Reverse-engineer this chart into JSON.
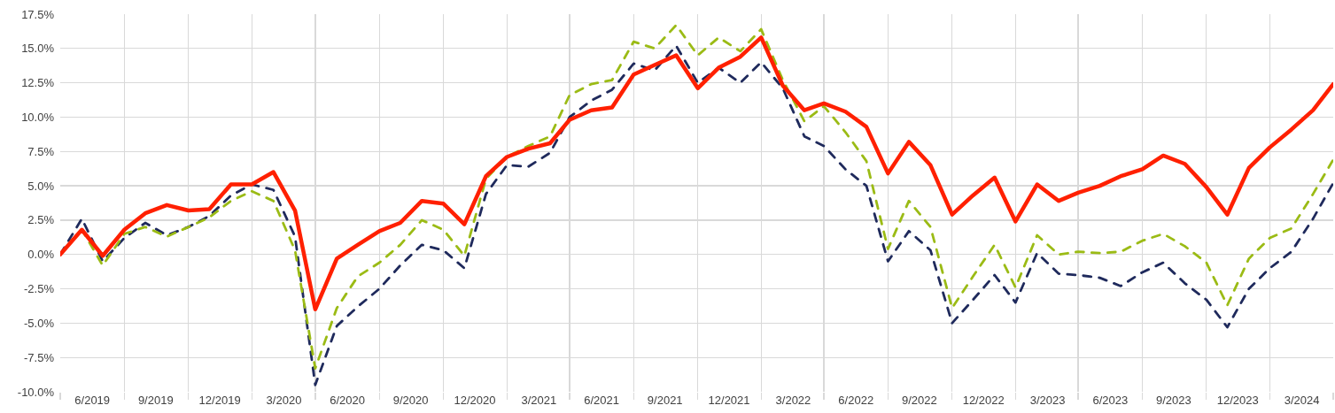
{
  "chart_data": {
    "type": "line",
    "x": [
      "2019-03",
      "2019-04",
      "2019-05",
      "2019-06",
      "2019-07",
      "2019-08",
      "2019-09",
      "2019-10",
      "2019-11",
      "2019-12",
      "2020-01",
      "2020-02",
      "2020-03",
      "2020-04",
      "2020-05",
      "2020-06",
      "2020-07",
      "2020-08",
      "2020-09",
      "2020-10",
      "2020-11",
      "2020-12",
      "2021-01",
      "2021-02",
      "2021-03",
      "2021-04",
      "2021-05",
      "2021-06",
      "2021-07",
      "2021-08",
      "2021-09",
      "2021-10",
      "2021-11",
      "2021-12",
      "2022-01",
      "2022-02",
      "2022-03",
      "2022-04",
      "2022-05",
      "2022-06",
      "2022-07",
      "2022-08",
      "2022-09",
      "2022-10",
      "2022-11",
      "2022-12",
      "2023-01",
      "2023-02",
      "2023-03",
      "2023-04",
      "2023-05",
      "2023-06",
      "2023-07",
      "2023-08",
      "2023-09",
      "2023-10",
      "2023-11",
      "2023-12",
      "2024-01",
      "2024-02",
      "2024-03"
    ],
    "series": [
      {
        "color": "#1f2a5c",
        "line_style": "dashed",
        "values": [
          0.0,
          2.6,
          -0.5,
          1.2,
          2.3,
          1.4,
          2.0,
          2.8,
          4.3,
          5.1,
          4.7,
          1.3,
          -9.5,
          -5.2,
          -3.8,
          -2.5,
          -0.8,
          0.7,
          0.3,
          -1.0,
          4.4,
          6.5,
          6.4,
          7.4,
          10.0,
          11.2,
          12.0,
          13.9,
          13.4,
          15.2,
          12.5,
          13.6,
          12.5,
          14.0,
          12.1,
          8.6,
          7.9,
          6.2,
          5.0,
          -0.5,
          1.7,
          0.3,
          -5.0,
          -3.3,
          -1.5,
          -3.5,
          0.1,
          -1.4,
          -1.5,
          -1.7,
          -2.3,
          -1.3,
          -0.6,
          -2.1,
          -3.3,
          -5.3,
          -2.5,
          -1.0,
          0.2,
          2.6,
          5.2
        ]
      },
      {
        "color": "#9bbb15",
        "line_style": "dashed",
        "values": [
          0.0,
          1.8,
          -0.8,
          1.5,
          2.0,
          1.3,
          2.0,
          2.7,
          3.9,
          4.6,
          3.9,
          0.3,
          -8.3,
          -3.9,
          -1.6,
          -0.6,
          0.7,
          2.5,
          1.8,
          -0.1,
          5.5,
          7.1,
          7.9,
          8.6,
          11.6,
          12.4,
          12.7,
          15.5,
          15.0,
          16.7,
          14.5,
          15.8,
          14.8,
          16.4,
          12.7,
          9.7,
          10.8,
          8.9,
          6.8,
          0.4,
          3.9,
          2.0,
          -3.9,
          -1.6,
          0.7,
          -2.4,
          1.4,
          0.0,
          0.2,
          0.1,
          0.2,
          1.0,
          1.5,
          0.6,
          -0.6,
          -3.7,
          -0.3,
          1.2,
          1.9,
          4.4,
          6.9
        ]
      },
      {
        "color": "#ff2000",
        "line_style": "solid",
        "values": [
          0.0,
          1.8,
          -0.1,
          1.8,
          3.0,
          3.6,
          3.2,
          3.3,
          5.1,
          5.1,
          6.0,
          3.2,
          -4.0,
          -0.3,
          0.7,
          1.7,
          2.3,
          3.9,
          3.7,
          2.2,
          5.7,
          7.1,
          7.7,
          8.1,
          9.8,
          10.5,
          10.7,
          13.1,
          13.8,
          14.5,
          12.1,
          13.6,
          14.4,
          15.8,
          12.3,
          10.5,
          11.0,
          10.4,
          9.3,
          5.9,
          8.2,
          6.5,
          2.9,
          4.3,
          5.6,
          2.4,
          5.1,
          3.9,
          4.5,
          5.0,
          5.7,
          6.2,
          7.2,
          6.6,
          4.9,
          2.9,
          6.3,
          7.8,
          9.1,
          10.5,
          12.4
        ]
      }
    ],
    "xlim": [
      "2019-03",
      "2024-03"
    ],
    "xticks": [
      {
        "value": "2019-03",
        "label": null
      },
      {
        "value": "2019-04-16",
        "label": "6/2019"
      },
      {
        "value": "2019-06",
        "label": null
      },
      {
        "value": "2019-07-16",
        "label": "9/2019"
      },
      {
        "value": "2019-09",
        "label": null
      },
      {
        "value": "2019-10-16",
        "label": "12/2019"
      },
      {
        "value": "2019-12",
        "label": null
      },
      {
        "value": "2020-01-16",
        "label": "3/2020"
      },
      {
        "value": "2020-03",
        "label": null
      },
      {
        "value": "2020-04-16",
        "label": "6/2020"
      },
      {
        "value": "2020-06",
        "label": null
      },
      {
        "value": "2020-07-16",
        "label": "9/2020"
      },
      {
        "value": "2020-09",
        "label": null
      },
      {
        "value": "2020-10-16",
        "label": "12/2020"
      },
      {
        "value": "2020-12",
        "label": null
      },
      {
        "value": "2021-01-16",
        "label": "3/2021"
      },
      {
        "value": "2021-03",
        "label": null
      },
      {
        "value": "2021-04-16",
        "label": "6/2021"
      },
      {
        "value": "2021-06",
        "label": null
      },
      {
        "value": "2021-07-16",
        "label": "9/2021"
      },
      {
        "value": "2021-09",
        "label": null
      },
      {
        "value": "2021-10-16",
        "label": "12/2021"
      },
      {
        "value": "2021-12",
        "label": null
      },
      {
        "value": "2022-01-16",
        "label": "3/2022"
      },
      {
        "value": "2022-03",
        "label": null
      },
      {
        "value": "2022-04-16",
        "label": "6/2022"
      },
      {
        "value": "2022-06",
        "label": null
      },
      {
        "value": "2022-07-16",
        "label": "9/2022"
      },
      {
        "value": "2022-09",
        "label": null
      },
      {
        "value": "2022-10-16",
        "label": "12/2022"
      },
      {
        "value": "2022-12",
        "label": null
      },
      {
        "value": "2023-01-16",
        "label": "3/2023"
      },
      {
        "value": "2023-03",
        "label": null
      },
      {
        "value": "2023-04-16",
        "label": "6/2023"
      },
      {
        "value": "2023-06",
        "label": null
      },
      {
        "value": "2023-07-16",
        "label": "9/2023"
      },
      {
        "value": "2023-09",
        "label": null
      },
      {
        "value": "2023-10-16",
        "label": "12/2023"
      },
      {
        "value": "2023-12",
        "label": null
      },
      {
        "value": "2024-01-16",
        "label": "3/2024"
      },
      {
        "value": "2024-03",
        "label": null
      }
    ],
    "ylim": [
      -10,
      17.5
    ],
    "yticks": [
      {
        "value": -10,
        "label": "-10.0%"
      },
      {
        "value": -7.5,
        "label": "-7.5%"
      },
      {
        "value": -5,
        "label": "-5.0%"
      },
      {
        "value": -2.5,
        "label": "-2.5%"
      },
      {
        "value": 0,
        "label": "0.0%"
      },
      {
        "value": 2.5,
        "label": "2.5%"
      },
      {
        "value": 5,
        "label": "5.0%"
      },
      {
        "value": 7.5,
        "label": "7.5%"
      },
      {
        "value": 10,
        "label": "10.0%"
      },
      {
        "value": 12.5,
        "label": "12.5%"
      },
      {
        "value": 15,
        "label": "15.0%"
      },
      {
        "value": 17.5,
        "label": "17.5%"
      }
    ],
    "grid": true,
    "marker": "none"
  }
}
